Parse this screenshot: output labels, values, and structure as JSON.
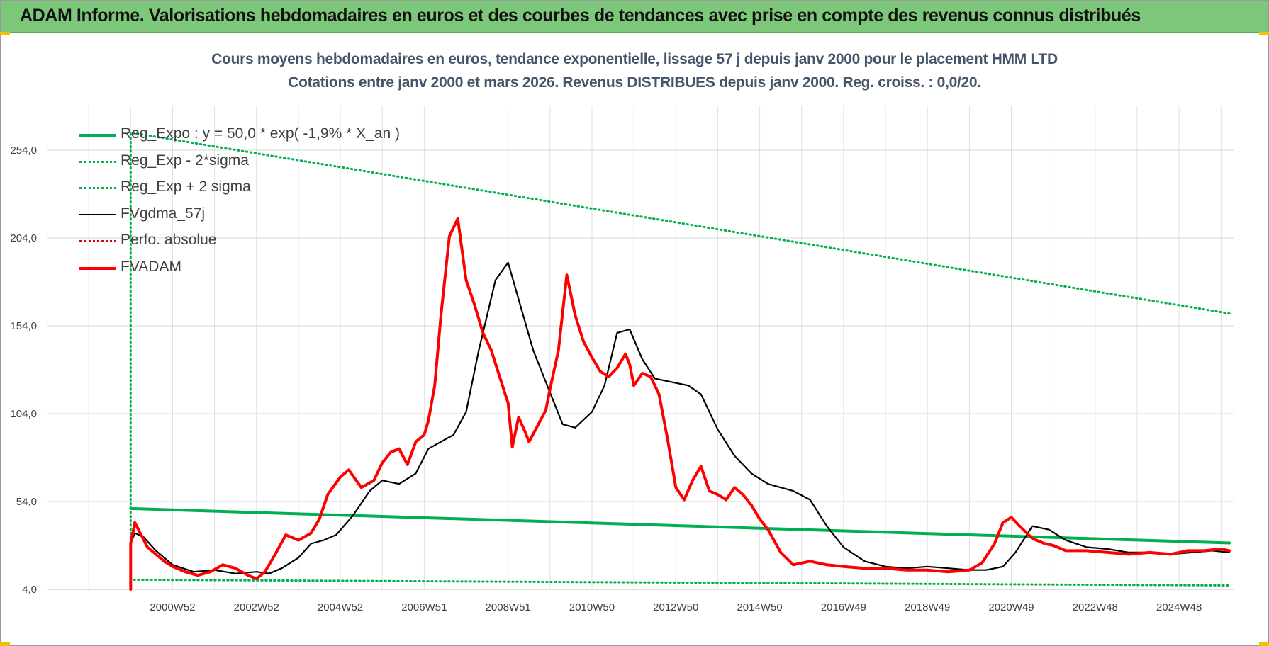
{
  "header": {
    "title": "ADAM Informe. Valorisations hebdomadaires en euros et des courbes de tendances avec prise en compte des revenus connus distribués"
  },
  "chart_data": {
    "type": "line",
    "title": "Cours moyens hebdomadaires en euros, tendance exponentielle, lissage 57 j depuis janv 2000 pour le placement HMM LTD",
    "subtitle": "Cotations entre janv 2000 et mars 2026. Revenus DISTRIBUES depuis janv 2000. Reg. croiss. : 0,0/20.",
    "xlabel": "",
    "ylabel": "",
    "ylim": [
      4,
      279
    ],
    "xlim": [
      1998.0,
      2026.3
    ],
    "x_ticks": [
      "2000W52",
      "2002W52",
      "2004W52",
      "2006W51",
      "2008W51",
      "2010W50",
      "2012W50",
      "2014W50",
      "2016W49",
      "2018W49",
      "2020W49",
      "2022W48",
      "2024W48"
    ],
    "x_tick_years": [
      2001.0,
      2003.0,
      2005.0,
      2007.0,
      2009.0,
      2011.0,
      2013.0,
      2015.0,
      2017.0,
      2019.0,
      2021.0,
      2023.0,
      2025.0
    ],
    "y_ticks": [
      "4,0",
      "54,0",
      "104,0",
      "154,0",
      "204,0",
      "254,0"
    ],
    "y_tick_values": [
      4,
      54,
      104,
      154,
      204,
      254
    ],
    "grid": true,
    "legend_position": "top-left",
    "series": [
      {
        "name": "Reg_Expo : y = 50,0 * exp( -1,9% *  X_an )",
        "color": "#00b050",
        "style": "solid-thick",
        "x": [
          2000.0,
          2026.2
        ],
        "y": [
          50.0,
          30.4
        ]
      },
      {
        "name": "Reg_Exp - 2*sigma",
        "color": "#00b050",
        "style": "dotted",
        "x": [
          2000.0,
          2000.0,
          2026.2
        ],
        "y": [
          4.0,
          9.5,
          6.2
        ]
      },
      {
        "name": "Reg_Exp + 2 sigma",
        "color": "#00b050",
        "style": "dotted",
        "x": [
          2000.0,
          2000.0,
          2026.2
        ],
        "y": [
          4.0,
          264.0,
          161.0
        ]
      },
      {
        "name": "FVgdma_57j",
        "color": "#000000",
        "style": "solid",
        "x": [
          2000.0,
          2000.1,
          2000.3,
          2000.6,
          2001.0,
          2001.5,
          2002.0,
          2002.5,
          2003.0,
          2003.3,
          2003.6,
          2004.0,
          2004.3,
          2004.6,
          2004.9,
          2005.3,
          2005.7,
          2006.0,
          2006.4,
          2006.8,
          2007.1,
          2007.4,
          2007.7,
          2008.0,
          2008.3,
          2008.7,
          2009.0,
          2009.3,
          2009.6,
          2010.0,
          2010.3,
          2010.6,
          2011.0,
          2011.3,
          2011.6,
          2011.9,
          2012.2,
          2012.5,
          2012.9,
          2013.3,
          2013.6,
          2014.0,
          2014.4,
          2014.8,
          2015.2,
          2015.5,
          2015.8,
          2016.2,
          2016.6,
          2017.0,
          2017.5,
          2018.0,
          2018.5,
          2019.0,
          2019.5,
          2020.0,
          2020.4,
          2020.8,
          2021.1,
          2021.5,
          2021.9,
          2022.3,
          2022.8,
          2023.3,
          2023.8,
          2024.3,
          2024.8,
          2025.3,
          2025.8,
          2026.2
        ],
        "y": [
          30,
          36,
          34,
          26,
          18,
          14,
          15,
          13,
          14,
          13,
          16,
          22,
          30,
          32,
          35,
          46,
          60,
          66,
          64,
          70,
          84,
          88,
          92,
          105,
          140,
          180,
          190,
          165,
          140,
          116,
          98,
          96,
          105,
          120,
          150,
          152,
          135,
          124,
          122,
          120,
          115,
          95,
          80,
          70,
          64,
          62,
          60,
          55,
          40,
          28,
          20,
          17,
          16,
          17,
          16,
          15,
          15,
          17,
          25,
          40,
          38,
          32,
          28,
          27,
          25,
          25,
          24,
          25,
          26,
          25
        ]
      },
      {
        "name": "Perfo. absolue",
        "color": "#e00000",
        "style": "dotted",
        "x": [],
        "y": []
      },
      {
        "name": "FVADAM",
        "color": "#ff0000",
        "style": "solid-thick",
        "x": [
          2000.0,
          2000.0,
          2000.1,
          2000.25,
          2000.4,
          2000.6,
          2000.8,
          2001.0,
          2001.3,
          2001.6,
          2001.9,
          2002.2,
          2002.5,
          2002.8,
          2003.0,
          2003.2,
          2003.4,
          2003.7,
          2004.0,
          2004.3,
          2004.5,
          2004.7,
          2005.0,
          2005.2,
          2005.5,
          2005.8,
          2006.0,
          2006.2,
          2006.4,
          2006.6,
          2006.8,
          2007.0,
          2007.1,
          2007.25,
          2007.4,
          2007.6,
          2007.8,
          2008.0,
          2008.2,
          2008.4,
          2008.6,
          2008.8,
          2009.0,
          2009.1,
          2009.25,
          2009.4,
          2009.5,
          2009.7,
          2009.9,
          2010.0,
          2010.2,
          2010.4,
          2010.6,
          2010.8,
          2011.0,
          2011.2,
          2011.4,
          2011.6,
          2011.8,
          2011.9,
          2012.0,
          2012.2,
          2012.4,
          2012.6,
          2012.8,
          2013.0,
          2013.2,
          2013.4,
          2013.6,
          2013.8,
          2014.0,
          2014.2,
          2014.4,
          2014.6,
          2014.8,
          2015.0,
          2015.2,
          2015.5,
          2015.8,
          2016.2,
          2016.6,
          2017.0,
          2017.5,
          2018.0,
          2018.5,
          2019.0,
          2019.5,
          2020.0,
          2020.3,
          2020.6,
          2020.8,
          2021.0,
          2021.2,
          2021.5,
          2021.8,
          2022.0,
          2022.3,
          2022.8,
          2023.3,
          2023.8,
          2024.3,
          2024.8,
          2025.2,
          2025.6,
          2026.0,
          2026.2
        ],
        "y": [
          4,
          30,
          42,
          35,
          28,
          24,
          20,
          17,
          14,
          12,
          14,
          18,
          16,
          12,
          10,
          14,
          22,
          35,
          32,
          36,
          44,
          58,
          68,
          72,
          62,
          66,
          76,
          82,
          84,
          75,
          88,
          92,
          100,
          120,
          160,
          205,
          215,
          180,
          166,
          150,
          140,
          125,
          110,
          85,
          102,
          94,
          88,
          97,
          106,
          118,
          140,
          183,
          160,
          145,
          136,
          128,
          125,
          130,
          138,
          132,
          120,
          127,
          125,
          115,
          90,
          62,
          55,
          66,
          74,
          60,
          58,
          55,
          62,
          58,
          52,
          44,
          38,
          25,
          18,
          20,
          18,
          17,
          16,
          16,
          15,
          15,
          14,
          15,
          19,
          30,
          42,
          45,
          40,
          33,
          30,
          29,
          26,
          26,
          25,
          24,
          25,
          24,
          26,
          26,
          27,
          26
        ]
      }
    ]
  }
}
